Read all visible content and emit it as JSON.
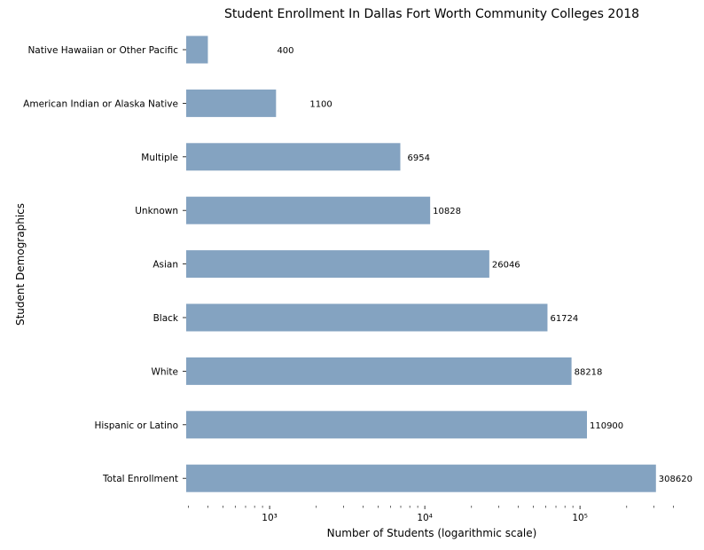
{
  "chart_data": {
    "type": "bar",
    "orientation": "horizontal",
    "title": "Student Enrollment In Dallas Fort Worth Community Colleges 2018",
    "xlabel": "Number of Students (logarithmic scale)",
    "ylabel": "Student Demographics",
    "x_scale": "log",
    "xlim": [
      290,
      430000
    ],
    "x_ticks": [
      {
        "value": 1000,
        "label": "10³"
      },
      {
        "value": 10000,
        "label": "10⁴"
      },
      {
        "value": 100000,
        "label": "10⁵"
      }
    ],
    "categories": [
      "Native Hawaiian or Other Pacific",
      "American Indian or Alaska Native",
      "Multiple",
      "Unknown",
      "Asian",
      "Black",
      "White",
      "Hispanic or Latino",
      "Total Enrollment"
    ],
    "values": [
      400,
      1100,
      6954,
      10828,
      26046,
      61724,
      88218,
      110900,
      308620
    ],
    "bar_color": "#84a3c1",
    "grid": false
  }
}
